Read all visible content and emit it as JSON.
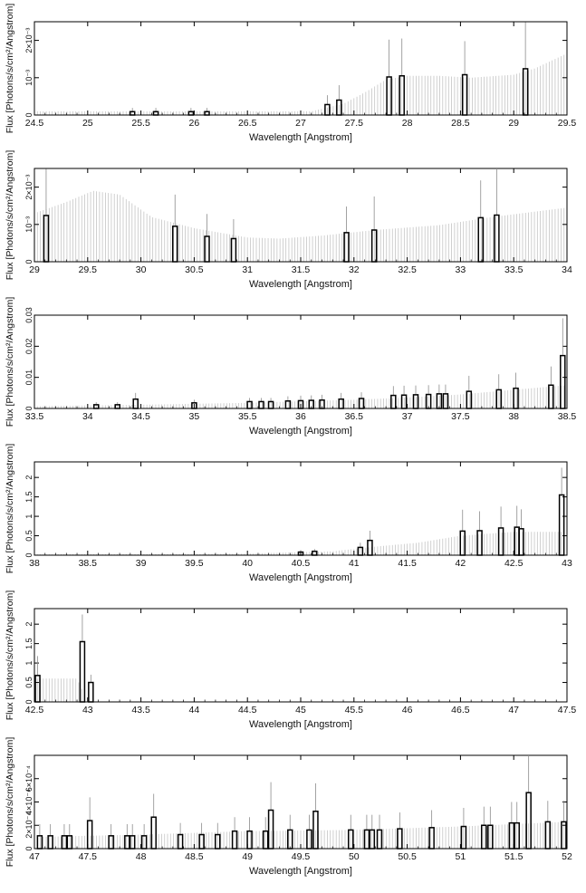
{
  "chart_data": [
    {
      "type": "bar",
      "title": "",
      "xlabel": "Wavelength [Angstrom]",
      "ylabel": "Flux [Photons/s/cm²/Angstrom]",
      "xlim": [
        24.5,
        29.5
      ],
      "ylim": [
        0,
        0.0025
      ],
      "xticks": [
        24.5,
        25,
        25.5,
        26,
        26.5,
        27,
        27.5,
        28,
        28.5,
        29,
        29.5
      ],
      "xtick_labels": [
        "24.5",
        "25",
        "25.5",
        "26",
        "26.5",
        "27",
        "27.5",
        "28",
        "28.5",
        "29",
        "29.5"
      ],
      "yticks": [
        0,
        0.001,
        0.002
      ],
      "ytick_labels": [
        "0",
        "10⁻³",
        "2×10⁻³"
      ],
      "bars": [
        {
          "x": 25.42,
          "y": 9e-05,
          "err": 0.0001
        },
        {
          "x": 25.64,
          "y": 9e-05,
          "err": 0.0001
        },
        {
          "x": 25.97,
          "y": 9e-05,
          "err": 0.0001
        },
        {
          "x": 26.12,
          "y": 9e-05,
          "err": 0.0001
        },
        {
          "x": 27.25,
          "y": 0.00028,
          "err": 0.00025
        },
        {
          "x": 27.36,
          "y": 0.0004,
          "err": 0.0004
        },
        {
          "x": 27.83,
          "y": 0.00102,
          "err": 0.001
        },
        {
          "x": 27.95,
          "y": 0.00105,
          "err": 0.001
        },
        {
          "x": 28.54,
          "y": 0.00108,
          "err": 0.0009
        },
        {
          "x": 29.11,
          "y": 0.00124,
          "err": 0.00125
        }
      ],
      "band_points": [
        [
          24.5,
          0.0001
        ],
        [
          27.1,
          0.0001
        ],
        [
          27.4,
          0.0003
        ],
        [
          27.6,
          0.0006
        ],
        [
          27.8,
          0.00095
        ],
        [
          28.0,
          0.00105
        ],
        [
          28.3,
          0.00105
        ],
        [
          28.6,
          0.001
        ],
        [
          29.0,
          0.00108
        ],
        [
          29.2,
          0.00125
        ],
        [
          29.5,
          0.00165
        ]
      ]
    },
    {
      "type": "bar",
      "title": "",
      "xlabel": "Wavelength [Angstrom]",
      "ylabel": "Flux [Photons/s/cm²/Angstrom]",
      "xlim": [
        29,
        34
      ],
      "ylim": [
        0,
        0.0025
      ],
      "xticks": [
        29,
        29.5,
        30,
        30.5,
        31,
        31.5,
        32,
        32.5,
        33,
        33.5,
        34
      ],
      "xtick_labels": [
        "29",
        "29.5",
        "30",
        "30.5",
        "31",
        "31.5",
        "32",
        "32.5",
        "33",
        "33.5",
        "34"
      ],
      "yticks": [
        0,
        0.001,
        0.002
      ],
      "ytick_labels": [
        "0",
        "10⁻³",
        "2×10⁻³"
      ],
      "bars": [
        {
          "x": 29.11,
          "y": 0.00124,
          "err": 0.00125
        },
        {
          "x": 30.32,
          "y": 0.00095,
          "err": 0.00085
        },
        {
          "x": 30.62,
          "y": 0.00068,
          "err": 0.0006
        },
        {
          "x": 30.87,
          "y": 0.00062,
          "err": 0.00052
        },
        {
          "x": 31.93,
          "y": 0.00078,
          "err": 0.0007
        },
        {
          "x": 32.19,
          "y": 0.00085,
          "err": 0.0009
        },
        {
          "x": 33.19,
          "y": 0.00118,
          "err": 0.001
        },
        {
          "x": 33.34,
          "y": 0.00125,
          "err": 0.00125
        }
      ],
      "band_points": [
        [
          29.0,
          0.0013
        ],
        [
          29.3,
          0.0016
        ],
        [
          29.55,
          0.0019
        ],
        [
          29.8,
          0.0018
        ],
        [
          29.95,
          0.0015
        ],
        [
          30.1,
          0.0012
        ],
        [
          30.5,
          0.0009
        ],
        [
          31.0,
          0.00065
        ],
        [
          31.3,
          0.00062
        ],
        [
          31.7,
          0.0007
        ],
        [
          32.2,
          0.00085
        ],
        [
          32.8,
          0.00098
        ],
        [
          33.3,
          0.0012
        ],
        [
          34.0,
          0.00145
        ]
      ]
    },
    {
      "type": "bar",
      "title": "",
      "xlabel": "Wavelength [Angstrom]",
      "ylabel": "Flux [Photons/s/cm²/Angstrom]",
      "xlim": [
        33.5,
        38.5
      ],
      "ylim": [
        0,
        0.03
      ],
      "xticks": [
        33.5,
        34,
        34.5,
        35,
        35.5,
        36,
        36.5,
        37,
        37.5,
        38,
        38.5
      ],
      "xtick_labels": [
        "33.5",
        "34",
        "34.5",
        "35",
        "35.5",
        "36",
        "36.5",
        "37",
        "37.5",
        "38",
        "38.5"
      ],
      "yticks": [
        0,
        0.01,
        0.02,
        0.03
      ],
      "ytick_labels": [
        "0",
        "0.01",
        "0.02",
        "0.03"
      ],
      "bars": [
        {
          "x": 34.08,
          "y": 0.0012,
          "err": 0.0008
        },
        {
          "x": 34.28,
          "y": 0.0012,
          "err": 0.0008
        },
        {
          "x": 34.45,
          "y": 0.003,
          "err": 0.002
        },
        {
          "x": 35.0,
          "y": 0.0018,
          "err": 0.001
        },
        {
          "x": 35.52,
          "y": 0.0022,
          "err": 0.0012
        },
        {
          "x": 35.63,
          "y": 0.0022,
          "err": 0.0012
        },
        {
          "x": 35.72,
          "y": 0.0022,
          "err": 0.0012
        },
        {
          "x": 35.88,
          "y": 0.0024,
          "err": 0.0015
        },
        {
          "x": 36.0,
          "y": 0.0025,
          "err": 0.0016
        },
        {
          "x": 36.1,
          "y": 0.0026,
          "err": 0.0016
        },
        {
          "x": 36.2,
          "y": 0.0027,
          "err": 0.0017
        },
        {
          "x": 36.38,
          "y": 0.003,
          "err": 0.002
        },
        {
          "x": 36.57,
          "y": 0.0032,
          "err": 0.002
        },
        {
          "x": 36.87,
          "y": 0.0042,
          "err": 0.003
        },
        {
          "x": 36.97,
          "y": 0.0043,
          "err": 0.003
        },
        {
          "x": 37.08,
          "y": 0.0044,
          "err": 0.003
        },
        {
          "x": 37.2,
          "y": 0.0045,
          "err": 0.003
        },
        {
          "x": 37.3,
          "y": 0.0047,
          "err": 0.003
        },
        {
          "x": 37.36,
          "y": 0.0047,
          "err": 0.003
        },
        {
          "x": 37.58,
          "y": 0.0055,
          "err": 0.005
        },
        {
          "x": 37.86,
          "y": 0.006,
          "err": 0.005
        },
        {
          "x": 38.02,
          "y": 0.0065,
          "err": 0.005
        },
        {
          "x": 38.35,
          "y": 0.0075,
          "err": 0.006
        },
        {
          "x": 38.46,
          "y": 0.017,
          "err": 0.012
        }
      ],
      "band_points": [
        [
          33.5,
          0.0007
        ],
        [
          34.5,
          0.0012
        ],
        [
          35.5,
          0.0018
        ],
        [
          36.5,
          0.0028
        ],
        [
          37.0,
          0.0035
        ],
        [
          37.5,
          0.0045
        ],
        [
          38.0,
          0.006
        ],
        [
          38.5,
          0.0075
        ]
      ]
    },
    {
      "type": "bar",
      "title": "",
      "xlabel": "Wavelength [Angstrom]",
      "ylabel": "Flux [Photons/s/cm²/Angstrom]",
      "xlim": [
        38,
        43
      ],
      "ylim": [
        0,
        2.4
      ],
      "xticks": [
        38,
        38.5,
        39,
        39.5,
        40,
        40.5,
        41,
        41.5,
        42,
        42.5,
        43
      ],
      "xtick_labels": [
        "38",
        "38.5",
        "39",
        "39.5",
        "40",
        "40.5",
        "41",
        "41.5",
        "42",
        "42.5",
        "43"
      ],
      "yticks": [
        0,
        0.5,
        1,
        1.5,
        2
      ],
      "ytick_labels": [
        "0",
        "0.5",
        "1",
        "1.5",
        "2"
      ],
      "bars": [
        {
          "x": 40.5,
          "y": 0.08,
          "err": 0.05
        },
        {
          "x": 40.63,
          "y": 0.1,
          "err": 0.06
        },
        {
          "x": 41.06,
          "y": 0.2,
          "err": 0.12
        },
        {
          "x": 41.15,
          "y": 0.38,
          "err": 0.25
        },
        {
          "x": 42.02,
          "y": 0.62,
          "err": 0.55
        },
        {
          "x": 42.18,
          "y": 0.63,
          "err": 0.5
        },
        {
          "x": 42.38,
          "y": 0.7,
          "err": 0.55
        },
        {
          "x": 42.53,
          "y": 0.72,
          "err": 0.55
        },
        {
          "x": 42.57,
          "y": 0.68,
          "err": 0.5
        },
        {
          "x": 42.95,
          "y": 1.55,
          "err": 0.7
        }
      ],
      "band_points": [
        [
          38.0,
          0.02
        ],
        [
          40.0,
          0.04
        ],
        [
          40.8,
          0.1
        ],
        [
          41.2,
          0.22
        ],
        [
          41.6,
          0.32
        ],
        [
          42.0,
          0.5
        ],
        [
          42.5,
          0.6
        ],
        [
          43.0,
          0.6
        ]
      ]
    },
    {
      "type": "bar",
      "title": "",
      "xlabel": "Wavelength [Angstrom]",
      "ylabel": "Flux [Photons/s/cm²/Angstrom]",
      "xlim": [
        42.5,
        47.5
      ],
      "ylim": [
        0,
        2.4
      ],
      "xticks": [
        42.5,
        43,
        43.5,
        44,
        44.5,
        45,
        45.5,
        46,
        46.5,
        47,
        47.5
      ],
      "xtick_labels": [
        "42.5",
        "43",
        "43.5",
        "44",
        "44.5",
        "45",
        "45.5",
        "46",
        "46.5",
        "47",
        "47.5"
      ],
      "yticks": [
        0,
        0.5,
        1,
        1.5,
        2
      ],
      "ytick_labels": [
        "0",
        "0.5",
        "1",
        "1.5",
        "2"
      ],
      "bars": [
        {
          "x": 42.53,
          "y": 0.68,
          "err": 0.5
        },
        {
          "x": 42.95,
          "y": 1.55,
          "err": 0.7
        },
        {
          "x": 43.03,
          "y": 0.5,
          "err": 0.2
        }
      ],
      "band_points": [
        [
          42.5,
          0.6
        ],
        [
          42.9,
          0.6
        ],
        [
          43.0,
          0.0
        ],
        [
          47.5,
          0.0
        ]
      ]
    },
    {
      "type": "bar",
      "title": "",
      "xlabel": "Wavelength [Angstrom]",
      "ylabel": "Flux [Photons/s/cm²/Angstrom]",
      "xlim": [
        47,
        52
      ],
      "ylim": [
        0,
        0.0008
      ],
      "xticks": [
        47,
        47.5,
        48,
        48.5,
        49,
        49.5,
        50,
        50.5,
        51,
        51.5,
        52
      ],
      "xtick_labels": [
        "47",
        "47.5",
        "48",
        "48.5",
        "49",
        "49.5",
        "50",
        "50.5",
        "51",
        "51.5",
        "52"
      ],
      "yticks": [
        0,
        0.0002,
        0.0004,
        0.0006
      ],
      "ytick_labels": [
        "0",
        "2×10⁻⁴",
        "4×10⁻⁴",
        "6×10⁻⁴"
      ],
      "bars": [
        {
          "x": 47.05,
          "y": 0.00011,
          "err": 0.0001
        },
        {
          "x": 47.15,
          "y": 0.00011,
          "err": 0.0001
        },
        {
          "x": 47.28,
          "y": 0.00011,
          "err": 0.0001
        },
        {
          "x": 47.33,
          "y": 0.00011,
          "err": 0.0001
        },
        {
          "x": 47.52,
          "y": 0.00024,
          "err": 0.0002
        },
        {
          "x": 47.72,
          "y": 0.00011,
          "err": 0.0001
        },
        {
          "x": 47.87,
          "y": 0.00011,
          "err": 0.0001
        },
        {
          "x": 47.92,
          "y": 0.00011,
          "err": 0.0001
        },
        {
          "x": 48.03,
          "y": 0.00011,
          "err": 0.0001
        },
        {
          "x": 48.12,
          "y": 0.00027,
          "err": 0.0002
        },
        {
          "x": 48.37,
          "y": 0.00012,
          "err": 0.0001
        },
        {
          "x": 48.57,
          "y": 0.00012,
          "err": 0.0001
        },
        {
          "x": 48.72,
          "y": 0.00012,
          "err": 0.0001
        },
        {
          "x": 48.88,
          "y": 0.00015,
          "err": 0.00012
        },
        {
          "x": 49.02,
          "y": 0.00015,
          "err": 0.00012
        },
        {
          "x": 49.17,
          "y": 0.00015,
          "err": 0.00012
        },
        {
          "x": 49.22,
          "y": 0.00033,
          "err": 0.00024
        },
        {
          "x": 49.4,
          "y": 0.00016,
          "err": 0.00013
        },
        {
          "x": 49.58,
          "y": 0.00016,
          "err": 0.00013
        },
        {
          "x": 49.64,
          "y": 0.00032,
          "err": 0.00024
        },
        {
          "x": 49.97,
          "y": 0.00016,
          "err": 0.00013
        },
        {
          "x": 50.12,
          "y": 0.00016,
          "err": 0.00013
        },
        {
          "x": 50.17,
          "y": 0.00016,
          "err": 0.00013
        },
        {
          "x": 50.24,
          "y": 0.00016,
          "err": 0.00013
        },
        {
          "x": 50.43,
          "y": 0.00017,
          "err": 0.00014
        },
        {
          "x": 50.73,
          "y": 0.00018,
          "err": 0.00015
        },
        {
          "x": 51.03,
          "y": 0.00019,
          "err": 0.00016
        },
        {
          "x": 51.22,
          "y": 0.0002,
          "err": 0.00016
        },
        {
          "x": 51.28,
          "y": 0.0002,
          "err": 0.00016
        },
        {
          "x": 51.48,
          "y": 0.00022,
          "err": 0.00018
        },
        {
          "x": 51.53,
          "y": 0.00022,
          "err": 0.00018
        },
        {
          "x": 51.64,
          "y": 0.00048,
          "err": 0.00032
        },
        {
          "x": 51.82,
          "y": 0.00023,
          "err": 0.00018
        },
        {
          "x": 51.97,
          "y": 0.00023,
          "err": 0.00018
        }
      ],
      "band_points": [
        [
          47.0,
          0.0001
        ],
        [
          48.0,
          0.00012
        ],
        [
          49.0,
          0.00015
        ],
        [
          50.0,
          0.00016
        ],
        [
          51.0,
          0.00019
        ],
        [
          52.0,
          0.00023
        ]
      ]
    }
  ]
}
